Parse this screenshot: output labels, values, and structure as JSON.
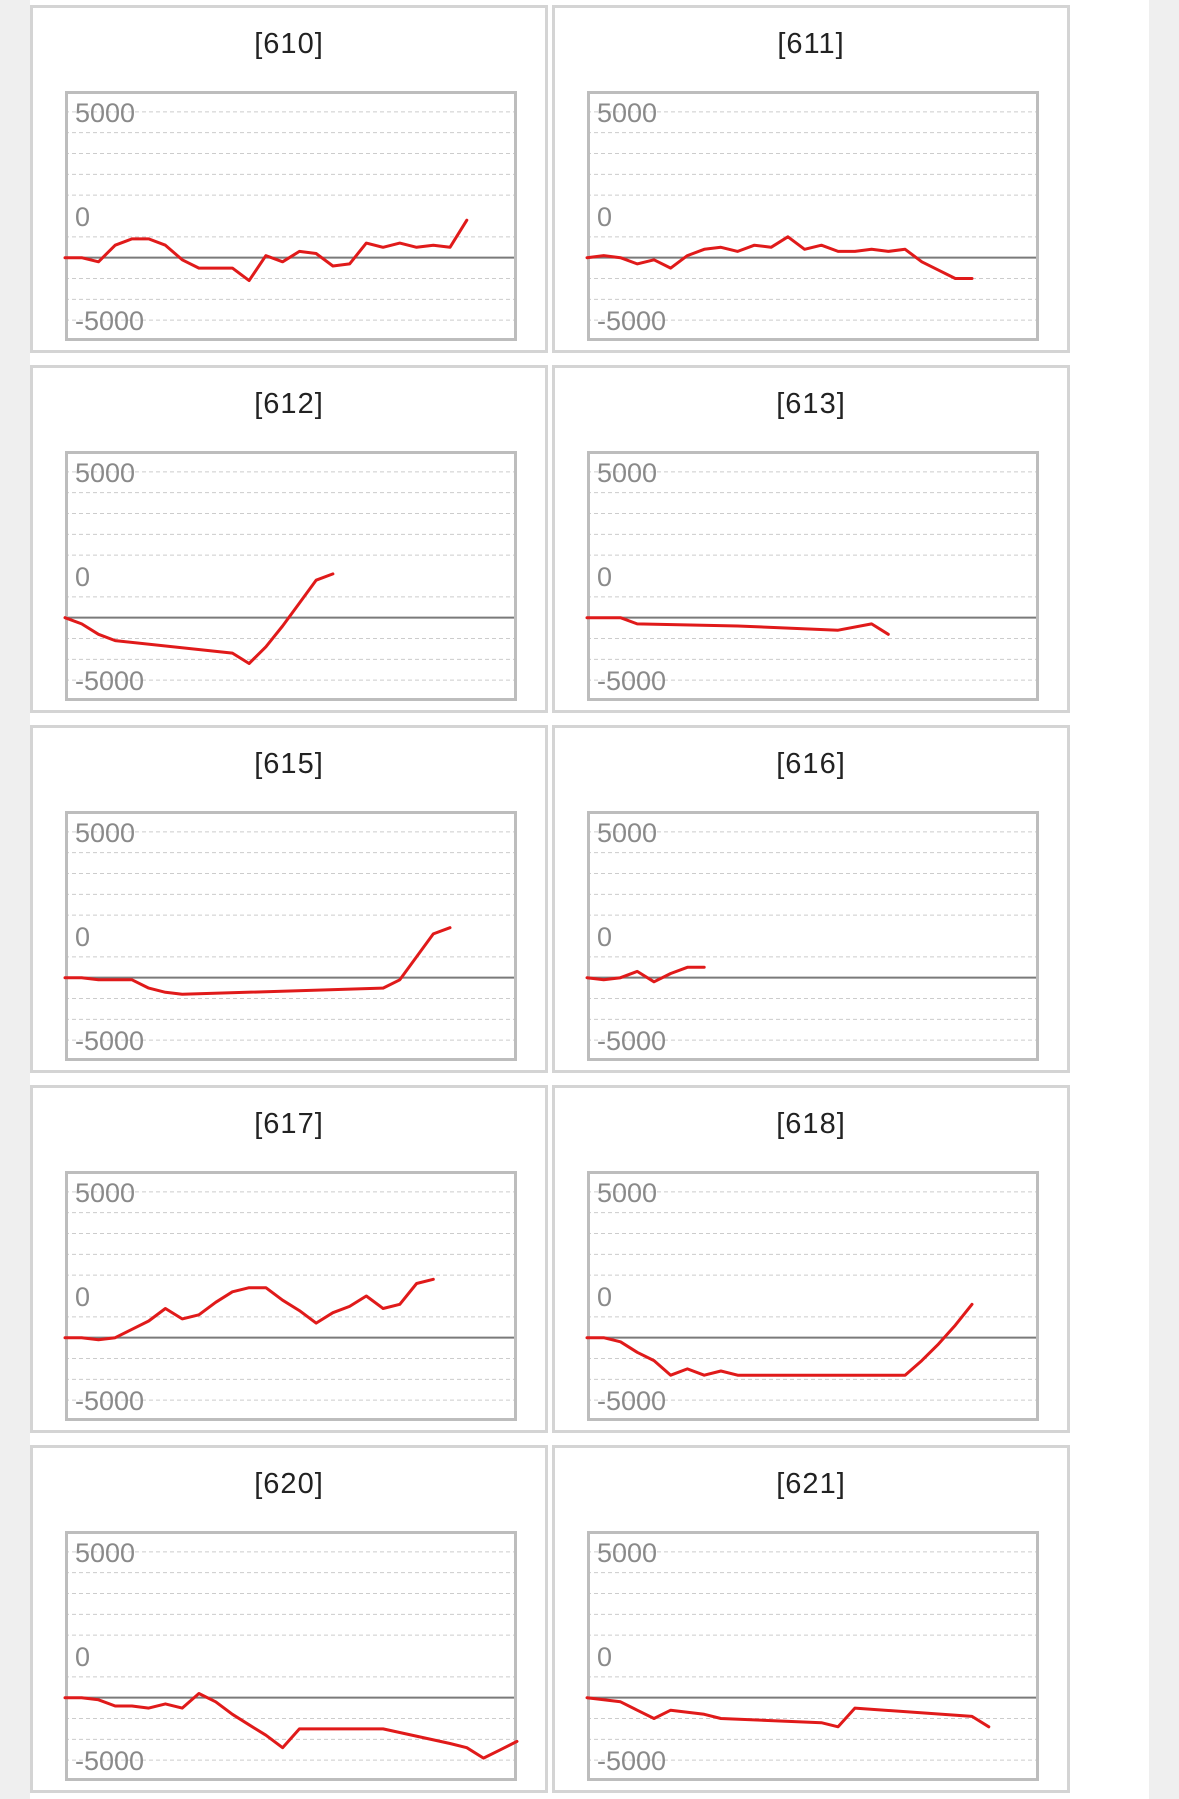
{
  "colors": {
    "series": "#e01a1a",
    "zero_line": "#7a7a7a",
    "grid": "#cccccc",
    "frame": "#bdbdbd"
  },
  "chart_data": [
    {
      "type": "line",
      "title": "[610]",
      "ylim": [
        -6000,
        6000
      ],
      "yticks": [
        5000,
        0,
        -5000
      ],
      "grid": true,
      "xlim": [
        0,
        27
      ],
      "values": [
        -2000,
        -2000,
        -2200,
        -1400,
        -1100,
        -1100,
        -1400,
        -2100,
        -2500,
        -2500,
        -2500,
        -3100,
        -1900,
        -2200,
        -1700,
        -1800,
        -2400,
        -2300,
        -1300,
        -1500,
        -1300,
        -1500,
        -1400,
        -1500,
        -200
      ]
    },
    {
      "type": "line",
      "title": "[611]",
      "ylim": [
        -6000,
        6000
      ],
      "yticks": [
        5000,
        0,
        -5000
      ],
      "grid": true,
      "xlim": [
        0,
        27
      ],
      "values": [
        -2000,
        -1900,
        -2000,
        -2300,
        -2100,
        -2500,
        -1900,
        -1600,
        -1500,
        -1700,
        -1400,
        -1500,
        -1000,
        -1600,
        -1400,
        -1700,
        -1700,
        -1600,
        -1700,
        -1600,
        -2200,
        -2600,
        -3000,
        -3000
      ]
    },
    {
      "type": "line",
      "title": "[612]",
      "ylim": [
        -6000,
        6000
      ],
      "yticks": [
        5000,
        0,
        -5000
      ],
      "grid": true,
      "xlim": [
        0,
        27
      ],
      "x": [
        0,
        1,
        2,
        3,
        10,
        11,
        12,
        13,
        14,
        15,
        16
      ],
      "values": [
        -2000,
        -2300,
        -2800,
        -3100,
        -3700,
        -4200,
        -3400,
        -2400,
        -1300,
        -200,
        100
      ]
    },
    {
      "type": "line",
      "title": "[613]",
      "ylim": [
        -6000,
        6000
      ],
      "yticks": [
        5000,
        0,
        -5000
      ],
      "grid": true,
      "xlim": [
        0,
        27
      ],
      "x": [
        0,
        2,
        3,
        9,
        15,
        17,
        18
      ],
      "values": [
        -2000,
        -2000,
        -2300,
        -2400,
        -2600,
        -2300,
        -2800
      ]
    },
    {
      "type": "line",
      "title": "[615]",
      "ylim": [
        -6000,
        6000
      ],
      "yticks": [
        5000,
        0,
        -5000
      ],
      "grid": true,
      "xlim": [
        0,
        27
      ],
      "x": [
        0,
        1,
        2,
        3,
        4,
        5,
        6,
        7,
        19,
        20,
        21,
        22,
        23
      ],
      "values": [
        -2000,
        -2000,
        -2100,
        -2100,
        -2100,
        -2500,
        -2700,
        -2800,
        -2500,
        -2100,
        -1000,
        100,
        400
      ]
    },
    {
      "type": "line",
      "title": "[616]",
      "ylim": [
        -6000,
        6000
      ],
      "yticks": [
        5000,
        0,
        -5000
      ],
      "grid": true,
      "xlim": [
        0,
        27
      ],
      "values": [
        -2000,
        -2100,
        -2000,
        -1700,
        -2200,
        -1800,
        -1500,
        -1500
      ]
    },
    {
      "type": "line",
      "title": "[617]",
      "ylim": [
        -6000,
        6000
      ],
      "yticks": [
        5000,
        0,
        -5000
      ],
      "grid": true,
      "xlim": [
        0,
        27
      ],
      "values": [
        -2000,
        -2000,
        -2100,
        -2000,
        -1600,
        -1200,
        -600,
        -1100,
        -900,
        -300,
        200,
        400,
        400,
        -200,
        -700,
        -1300,
        -800,
        -500,
        0,
        -600,
        -400,
        600,
        800
      ]
    },
    {
      "type": "line",
      "title": "[618]",
      "ylim": [
        -6000,
        6000
      ],
      "yticks": [
        5000,
        0,
        -5000
      ],
      "grid": true,
      "xlim": [
        0,
        27
      ],
      "x": [
        0,
        1,
        2,
        3,
        4,
        5,
        6,
        7,
        8,
        9,
        19,
        20,
        21,
        22,
        23
      ],
      "values": [
        -2000,
        -2000,
        -2200,
        -2700,
        -3100,
        -3800,
        -3500,
        -3800,
        -3600,
        -3800,
        -3800,
        -3100,
        -2300,
        -1400,
        -400
      ]
    },
    {
      "type": "line",
      "title": "[620]",
      "ylim": [
        -6000,
        6000
      ],
      "yticks": [
        5000,
        0,
        -5000
      ],
      "grid": true,
      "xlim": [
        0,
        27
      ],
      "x": [
        0,
        1,
        2,
        3,
        4,
        5,
        6,
        7,
        8,
        9,
        10,
        11,
        12,
        13,
        14,
        15,
        16,
        17,
        18,
        19,
        23,
        24,
        25,
        26,
        27
      ],
      "values": [
        -2000,
        -2000,
        -2100,
        -2400,
        -2400,
        -2500,
        -2300,
        -2500,
        -1800,
        -2200,
        -2800,
        -3300,
        -3800,
        -4400,
        -3500,
        -3500,
        -3500,
        -3500,
        -3500,
        -3500,
        -4200,
        -4400,
        -4900,
        -4500,
        -4100
      ]
    },
    {
      "type": "line",
      "title": "[621]",
      "ylim": [
        -6000,
        6000
      ],
      "yticks": [
        5000,
        0,
        -5000
      ],
      "grid": true,
      "xlim": [
        0,
        27
      ],
      "x": [
        0,
        1,
        2,
        3,
        4,
        5,
        6,
        7,
        8,
        14,
        15,
        16,
        23,
        24
      ],
      "values": [
        -2000,
        -2100,
        -2200,
        -2600,
        -3000,
        -2600,
        -2700,
        -2800,
        -3000,
        -3200,
        -3400,
        -2500,
        -2900,
        -3400
      ]
    }
  ]
}
